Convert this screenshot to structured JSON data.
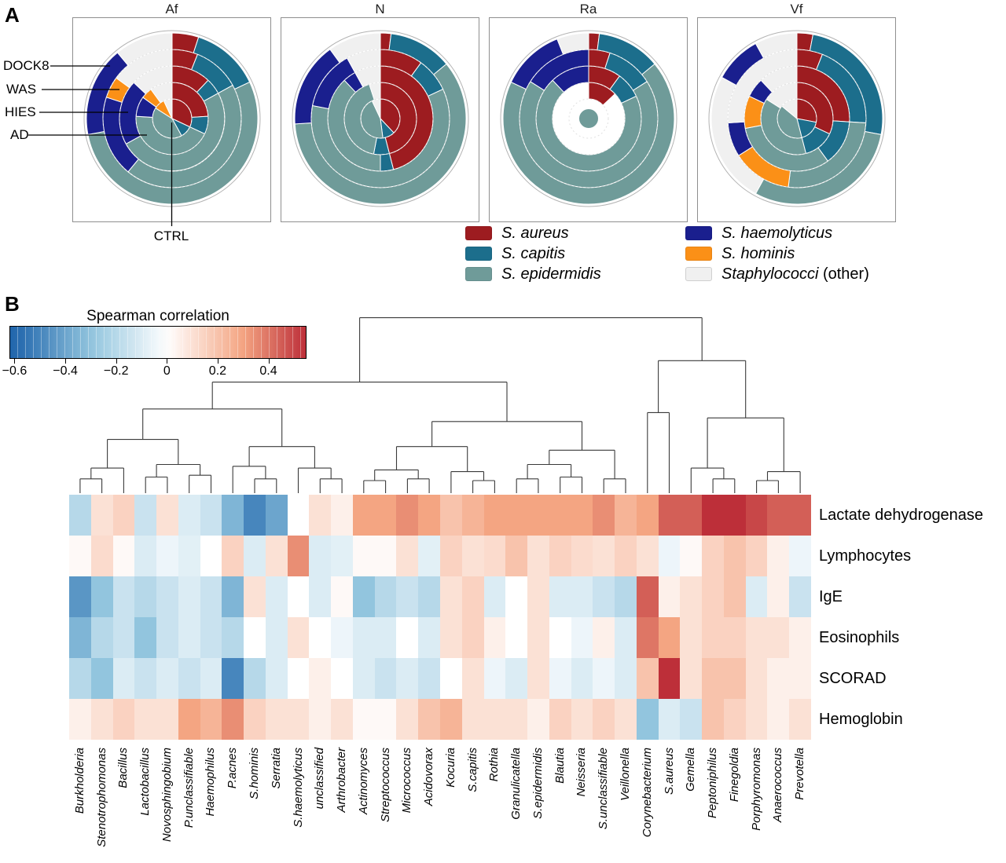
{
  "panel_a": {
    "label": "A",
    "row_labels": [
      "DOCK8",
      "WAS",
      "HIES",
      "AD"
    ],
    "ctrl_label": "CTRL",
    "legend": {
      "items": [
        {
          "label": "S. aureus",
          "suffix": "",
          "color": "#9d1c20"
        },
        {
          "label": "S. capitis",
          "suffix": "",
          "color": "#1c6e8c"
        },
        {
          "label": "S. epidermidis",
          "suffix": "",
          "color": "#6f9b99"
        },
        {
          "label": "S. haemolyticus",
          "suffix": "",
          "color": "#1a1f8e"
        },
        {
          "label": "S. hominis",
          "suffix": "",
          "color": "#fb9017"
        },
        {
          "label": "Staphylococci",
          "suffix": " (other)",
          "color": "#f0f0f0"
        }
      ]
    }
  },
  "panel_b": {
    "label": "B",
    "colorbar_title": "Spearman correlation",
    "colorbar": {
      "min": -0.62,
      "max": 0.55,
      "ticks": [
        {
          "value": -0.6,
          "label": "−0.6"
        },
        {
          "value": -0.4,
          "label": "−0.4"
        },
        {
          "value": -0.2,
          "label": "−0.2"
        },
        {
          "value": 0,
          "label": "0"
        },
        {
          "value": 0.2,
          "label": "0.2"
        },
        {
          "value": 0.4,
          "label": "0.4"
        }
      ]
    }
  },
  "colors": {
    "aureus": "#9d1c20",
    "capitis": "#1c6e8c",
    "epidermidis": "#6f9b99",
    "haemolyticus": "#1a1f8e",
    "hominis": "#fb9017",
    "other": "#f0f0f0"
  },
  "chart_data": [
    {
      "type": "polar-stacked",
      "title": "Af",
      "ring_order": [
        "CTRL",
        "AD",
        "HIES",
        "WAS",
        "DOCK8"
      ],
      "ctrl_scale": 1,
      "rings": {
        "CTRL": [
          [
            "aureus",
            0.32
          ],
          [
            "capitis",
            0.1
          ],
          [
            "epidermidis",
            0.42
          ],
          [
            "hominis",
            0.09
          ],
          [
            "other",
            0.07
          ]
        ],
        "AD": [
          [
            "aureus",
            0.24
          ],
          [
            "capitis",
            0.08
          ],
          [
            "epidermidis",
            0.44
          ],
          [
            "haemolyticus",
            0.09
          ],
          [
            "hominis",
            0.05
          ],
          [
            "other",
            0.1
          ]
        ],
        "HIES": [
          [
            "aureus",
            0.12
          ],
          [
            "capitis",
            0.05
          ],
          [
            "epidermidis",
            0.5
          ],
          [
            "haemolyticus",
            0.2
          ],
          [
            "other",
            0.13
          ]
        ],
        "WAS": [
          [
            "aureus",
            0.06
          ],
          [
            "capitis",
            0.11
          ],
          [
            "epidermidis",
            0.44
          ],
          [
            "haemolyticus",
            0.19
          ],
          [
            "hominis",
            0.05
          ],
          [
            "other",
            0.15
          ]
        ],
        "DOCK8": [
          [
            "aureus",
            0.05
          ],
          [
            "capitis",
            0.13
          ],
          [
            "epidermidis",
            0.54
          ],
          [
            "haemolyticus",
            0.17
          ],
          [
            "other",
            0.11
          ]
        ]
      }
    },
    {
      "type": "polar-stacked",
      "title": "N",
      "ring_order": [
        "CTRL",
        "AD",
        "HIES",
        "WAS",
        "DOCK8"
      ],
      "ctrl_scale": 1,
      "rings": {
        "CTRL": [
          [
            "aureus",
            0.38
          ],
          [
            "capitis",
            0.1
          ],
          [
            "epidermidis",
            0.45
          ],
          [
            "other",
            0.07
          ]
        ],
        "AD": [
          [
            "aureus",
            0.46
          ],
          [
            "capitis",
            0.07
          ],
          [
            "epidermidis",
            0.42
          ],
          [
            "other",
            0.05
          ]
        ],
        "HIES": [
          [
            "aureus",
            0.46
          ],
          [
            "capitis",
            0.04
          ],
          [
            "epidermidis",
            0.38
          ],
          [
            "haemolyticus",
            0.04
          ],
          [
            "other",
            0.08
          ]
        ],
        "WAS": [
          [
            "aureus",
            0.1
          ],
          [
            "capitis",
            0.08
          ],
          [
            "epidermidis",
            0.6
          ],
          [
            "haemolyticus",
            0.14
          ],
          [
            "other",
            0.08
          ]
        ],
        "DOCK8": [
          [
            "aureus",
            0.02
          ],
          [
            "capitis",
            0.12
          ],
          [
            "epidermidis",
            0.6
          ],
          [
            "haemolyticus",
            0.16
          ],
          [
            "other",
            0.1
          ]
        ]
      }
    },
    {
      "type": "polar-stacked",
      "title": "Ra",
      "ring_order": [
        "CTRL",
        "AD",
        "HIES",
        "WAS",
        "DOCK8"
      ],
      "ctrl_scale": 0.5,
      "rings": {
        "CTRL": [
          [
            "epidermidis",
            1.0
          ]
        ],
        "AD": [
          [
            "aureus",
            0.13
          ],
          [
            "none",
            0.87
          ]
        ],
        "HIES": [
          [
            "aureus",
            0.1
          ],
          [
            "capitis",
            0.08
          ],
          [
            "epidermidis",
            0.7
          ],
          [
            "haemolyticus",
            0.12
          ]
        ],
        "WAS": [
          [
            "aureus",
            0.05
          ],
          [
            "capitis",
            0.11
          ],
          [
            "epidermidis",
            0.68
          ],
          [
            "haemolyticus",
            0.16
          ]
        ],
        "DOCK8": [
          [
            "aureus",
            0.02
          ],
          [
            "capitis",
            0.12
          ],
          [
            "epidermidis",
            0.68
          ],
          [
            "haemolyticus",
            0.12
          ],
          [
            "other",
            0.06
          ]
        ]
      }
    },
    {
      "type": "polar-stacked",
      "title": "Vf",
      "ring_order": [
        "CTRL",
        "AD",
        "HIES",
        "WAS",
        "DOCK8"
      ],
      "ctrl_scale": 1,
      "rings": {
        "CTRL": [
          [
            "aureus",
            0.28
          ],
          [
            "capitis",
            0.18
          ],
          [
            "epidermidis",
            0.4
          ],
          [
            "other",
            0.14
          ]
        ],
        "AD": [
          [
            "aureus",
            0.32
          ],
          [
            "capitis",
            0.14
          ],
          [
            "epidermidis",
            0.38
          ],
          [
            "other",
            0.16
          ]
        ],
        "HIES": [
          [
            "aureus",
            0.26
          ],
          [
            "capitis",
            0.14
          ],
          [
            "epidermidis",
            0.32
          ],
          [
            "hominis",
            0.1
          ],
          [
            "haemolyticus",
            0.06
          ],
          [
            "other",
            0.12
          ]
        ],
        "WAS": [
          [
            "aureus",
            0.06
          ],
          [
            "capitis",
            0.2
          ],
          [
            "epidermidis",
            0.26
          ],
          [
            "hominis",
            0.14
          ],
          [
            "haemolyticus",
            0.08
          ],
          [
            "other",
            0.26
          ]
        ],
        "DOCK8": [
          [
            "aureus",
            0.03
          ],
          [
            "capitis",
            0.25
          ],
          [
            "epidermidis",
            0.3
          ],
          [
            "other",
            0.25
          ],
          [
            "haemolyticus",
            0.09
          ],
          [
            "other",
            0.08
          ]
        ]
      }
    },
    {
      "type": "heatmap",
      "title": "Spearman correlation",
      "rows": [
        "Lactate dehydrogenase",
        "Lymphocytes",
        "IgE",
        "Eosinophils",
        "SCORAD",
        "Hemoglobin"
      ],
      "columns": [
        "Burkholderia",
        "Stenotrophomonas",
        "Bacillus",
        "Lactobacillus",
        "Novosphingobium",
        "P.unclassifiable",
        "Haemophilus",
        "P.acnes",
        "S.hominis",
        "Serratia",
        "S.haemolyticus",
        "unclassified",
        "Arthrobacter",
        "Actinomyces",
        "Streptococcus",
        "Micrococcus",
        "Acidovorax",
        "Kocuria",
        "S.capitis",
        "Rothia",
        "Granulicatella",
        "S.epidermidis",
        "Blautia",
        "Neisseria",
        "S.unclassifiable",
        "Veillonella",
        "Corynebacterium",
        "S.aureus",
        "Gemella",
        "Peptoniphilus",
        "Finegoldia",
        "Porphyromonas",
        "Anaerococcus",
        "Prevotella"
      ],
      "values": [
        [
          -0.2,
          0.1,
          0.15,
          -0.15,
          0.1,
          -0.1,
          -0.15,
          -0.35,
          -0.5,
          -0.4,
          0.0,
          0.1,
          0.05,
          0.3,
          0.3,
          0.35,
          0.3,
          0.2,
          0.25,
          0.3,
          0.3,
          0.3,
          0.3,
          0.3,
          0.35,
          0.25,
          0.3,
          0.45,
          0.45,
          0.55,
          0.55,
          0.5,
          0.45,
          0.45
        ],
        [
          0.02,
          0.12,
          0.02,
          -0.1,
          -0.05,
          -0.08,
          0.0,
          0.15,
          -0.1,
          0.1,
          0.35,
          -0.1,
          -0.08,
          0.02,
          0.02,
          0.1,
          -0.08,
          0.15,
          0.1,
          0.12,
          0.2,
          0.1,
          0.15,
          0.12,
          0.1,
          0.15,
          0.1,
          -0.05,
          0.02,
          0.15,
          0.2,
          0.15,
          0.05,
          -0.05
        ],
        [
          -0.45,
          -0.3,
          -0.15,
          -0.2,
          -0.15,
          -0.1,
          -0.15,
          -0.35,
          0.1,
          -0.1,
          0.0,
          -0.1,
          0.02,
          -0.3,
          -0.2,
          -0.15,
          -0.2,
          0.1,
          0.15,
          -0.1,
          0.0,
          0.1,
          -0.1,
          -0.1,
          -0.15,
          -0.2,
          0.45,
          0.05,
          0.1,
          0.15,
          0.2,
          -0.1,
          0.05,
          -0.15
        ],
        [
          -0.35,
          -0.2,
          -0.15,
          -0.3,
          -0.15,
          -0.1,
          -0.15,
          -0.2,
          0.0,
          -0.1,
          0.1,
          0.0,
          -0.05,
          -0.1,
          -0.1,
          0.0,
          -0.1,
          0.1,
          0.15,
          0.05,
          0.0,
          0.1,
          0.0,
          -0.05,
          0.05,
          -0.1,
          0.4,
          0.3,
          0.1,
          0.15,
          0.15,
          0.1,
          0.1,
          0.05
        ],
        [
          -0.2,
          -0.3,
          -0.1,
          -0.15,
          -0.1,
          -0.15,
          -0.1,
          -0.5,
          -0.2,
          -0.1,
          0.0,
          0.05,
          0.0,
          -0.1,
          -0.15,
          -0.1,
          -0.15,
          0.0,
          0.1,
          -0.05,
          -0.1,
          0.1,
          -0.05,
          -0.1,
          -0.05,
          -0.1,
          0.2,
          0.55,
          0.1,
          0.2,
          0.2,
          0.1,
          0.05,
          0.05
        ],
        [
          0.05,
          0.1,
          0.15,
          0.1,
          0.1,
          0.3,
          0.25,
          0.35,
          0.15,
          0.1,
          0.1,
          0.05,
          0.1,
          0.02,
          0.02,
          0.1,
          0.2,
          0.25,
          0.1,
          0.1,
          0.1,
          0.05,
          0.15,
          0.1,
          0.15,
          0.1,
          -0.3,
          -0.1,
          -0.15,
          0.2,
          0.15,
          0.1,
          0.05,
          0.1
        ]
      ],
      "value_range": [
        -0.6,
        0.55
      ],
      "colormap": "blue-white-red",
      "legend_position": "top-left",
      "dendrogram": {
        "h": 0.98,
        "c": [
          {
            "h": 0.62,
            "c": [
              {
                "h": 0.47,
                "c": [
                  {
                    "h": 0.3,
                    "c": [
                      {
                        "h": 0.14,
                        "c": [
                          {
                            "h": 0.08,
                            "c": [
                              0,
                              1
                            ]
                          },
                          2
                        ]
                      },
                      {
                        "h": 0.16,
                        "c": [
                          {
                            "h": 0.09,
                            "c": [
                              3,
                              4
                            ]
                          },
                          {
                            "h": 0.1,
                            "c": [
                              5,
                              6
                            ]
                          }
                        ]
                      }
                    ]
                  },
                  {
                    "h": 0.26,
                    "c": [
                      {
                        "h": 0.15,
                        "c": [
                          7,
                          {
                            "h": 0.08,
                            "c": [
                              8,
                              9
                            ]
                          }
                        ]
                      },
                      {
                        "h": 0.14,
                        "c": [
                          10,
                          {
                            "h": 0.08,
                            "c": [
                              11,
                              12
                            ]
                          }
                        ]
                      }
                    ]
                  }
                ]
              },
              {
                "h": 0.4,
                "c": [
                  {
                    "h": 0.26,
                    "c": [
                      {
                        "h": 0.13,
                        "c": [
                          {
                            "h": 0.07,
                            "c": [
                              13,
                              14
                            ]
                          },
                          {
                            "h": 0.08,
                            "c": [
                              15,
                              16
                            ]
                          }
                        ]
                      },
                      {
                        "h": 0.12,
                        "c": [
                          17,
                          {
                            "h": 0.07,
                            "c": [
                              18,
                              19
                            ]
                          }
                        ]
                      }
                    ]
                  },
                  {
                    "h": 0.24,
                    "c": [
                      {
                        "h": 0.16,
                        "c": [
                          {
                            "h": 0.08,
                            "c": [
                              20,
                              21
                            ]
                          },
                          {
                            "h": 0.09,
                            "c": [
                              22,
                              23
                            ]
                          }
                        ]
                      },
                      {
                        "h": 0.08,
                        "c": [
                          24,
                          25
                        ]
                      }
                    ]
                  }
                ]
              }
            ]
          },
          {
            "h": 0.74,
            "c": [
              {
                "h": 0.45,
                "c": [
                  26,
                  27
                ]
              },
              {
                "h": 0.42,
                "c": [
                  {
                    "h": 0.14,
                    "c": [
                      28,
                      {
                        "h": 0.08,
                        "c": [
                          29,
                          30
                        ]
                      }
                    ]
                  },
                  {
                    "h": 0.12,
                    "c": [
                      {
                        "h": 0.07,
                        "c": [
                          31,
                          32
                        ]
                      },
                      33
                    ]
                  }
                ]
              }
            ]
          }
        ]
      }
    }
  ]
}
